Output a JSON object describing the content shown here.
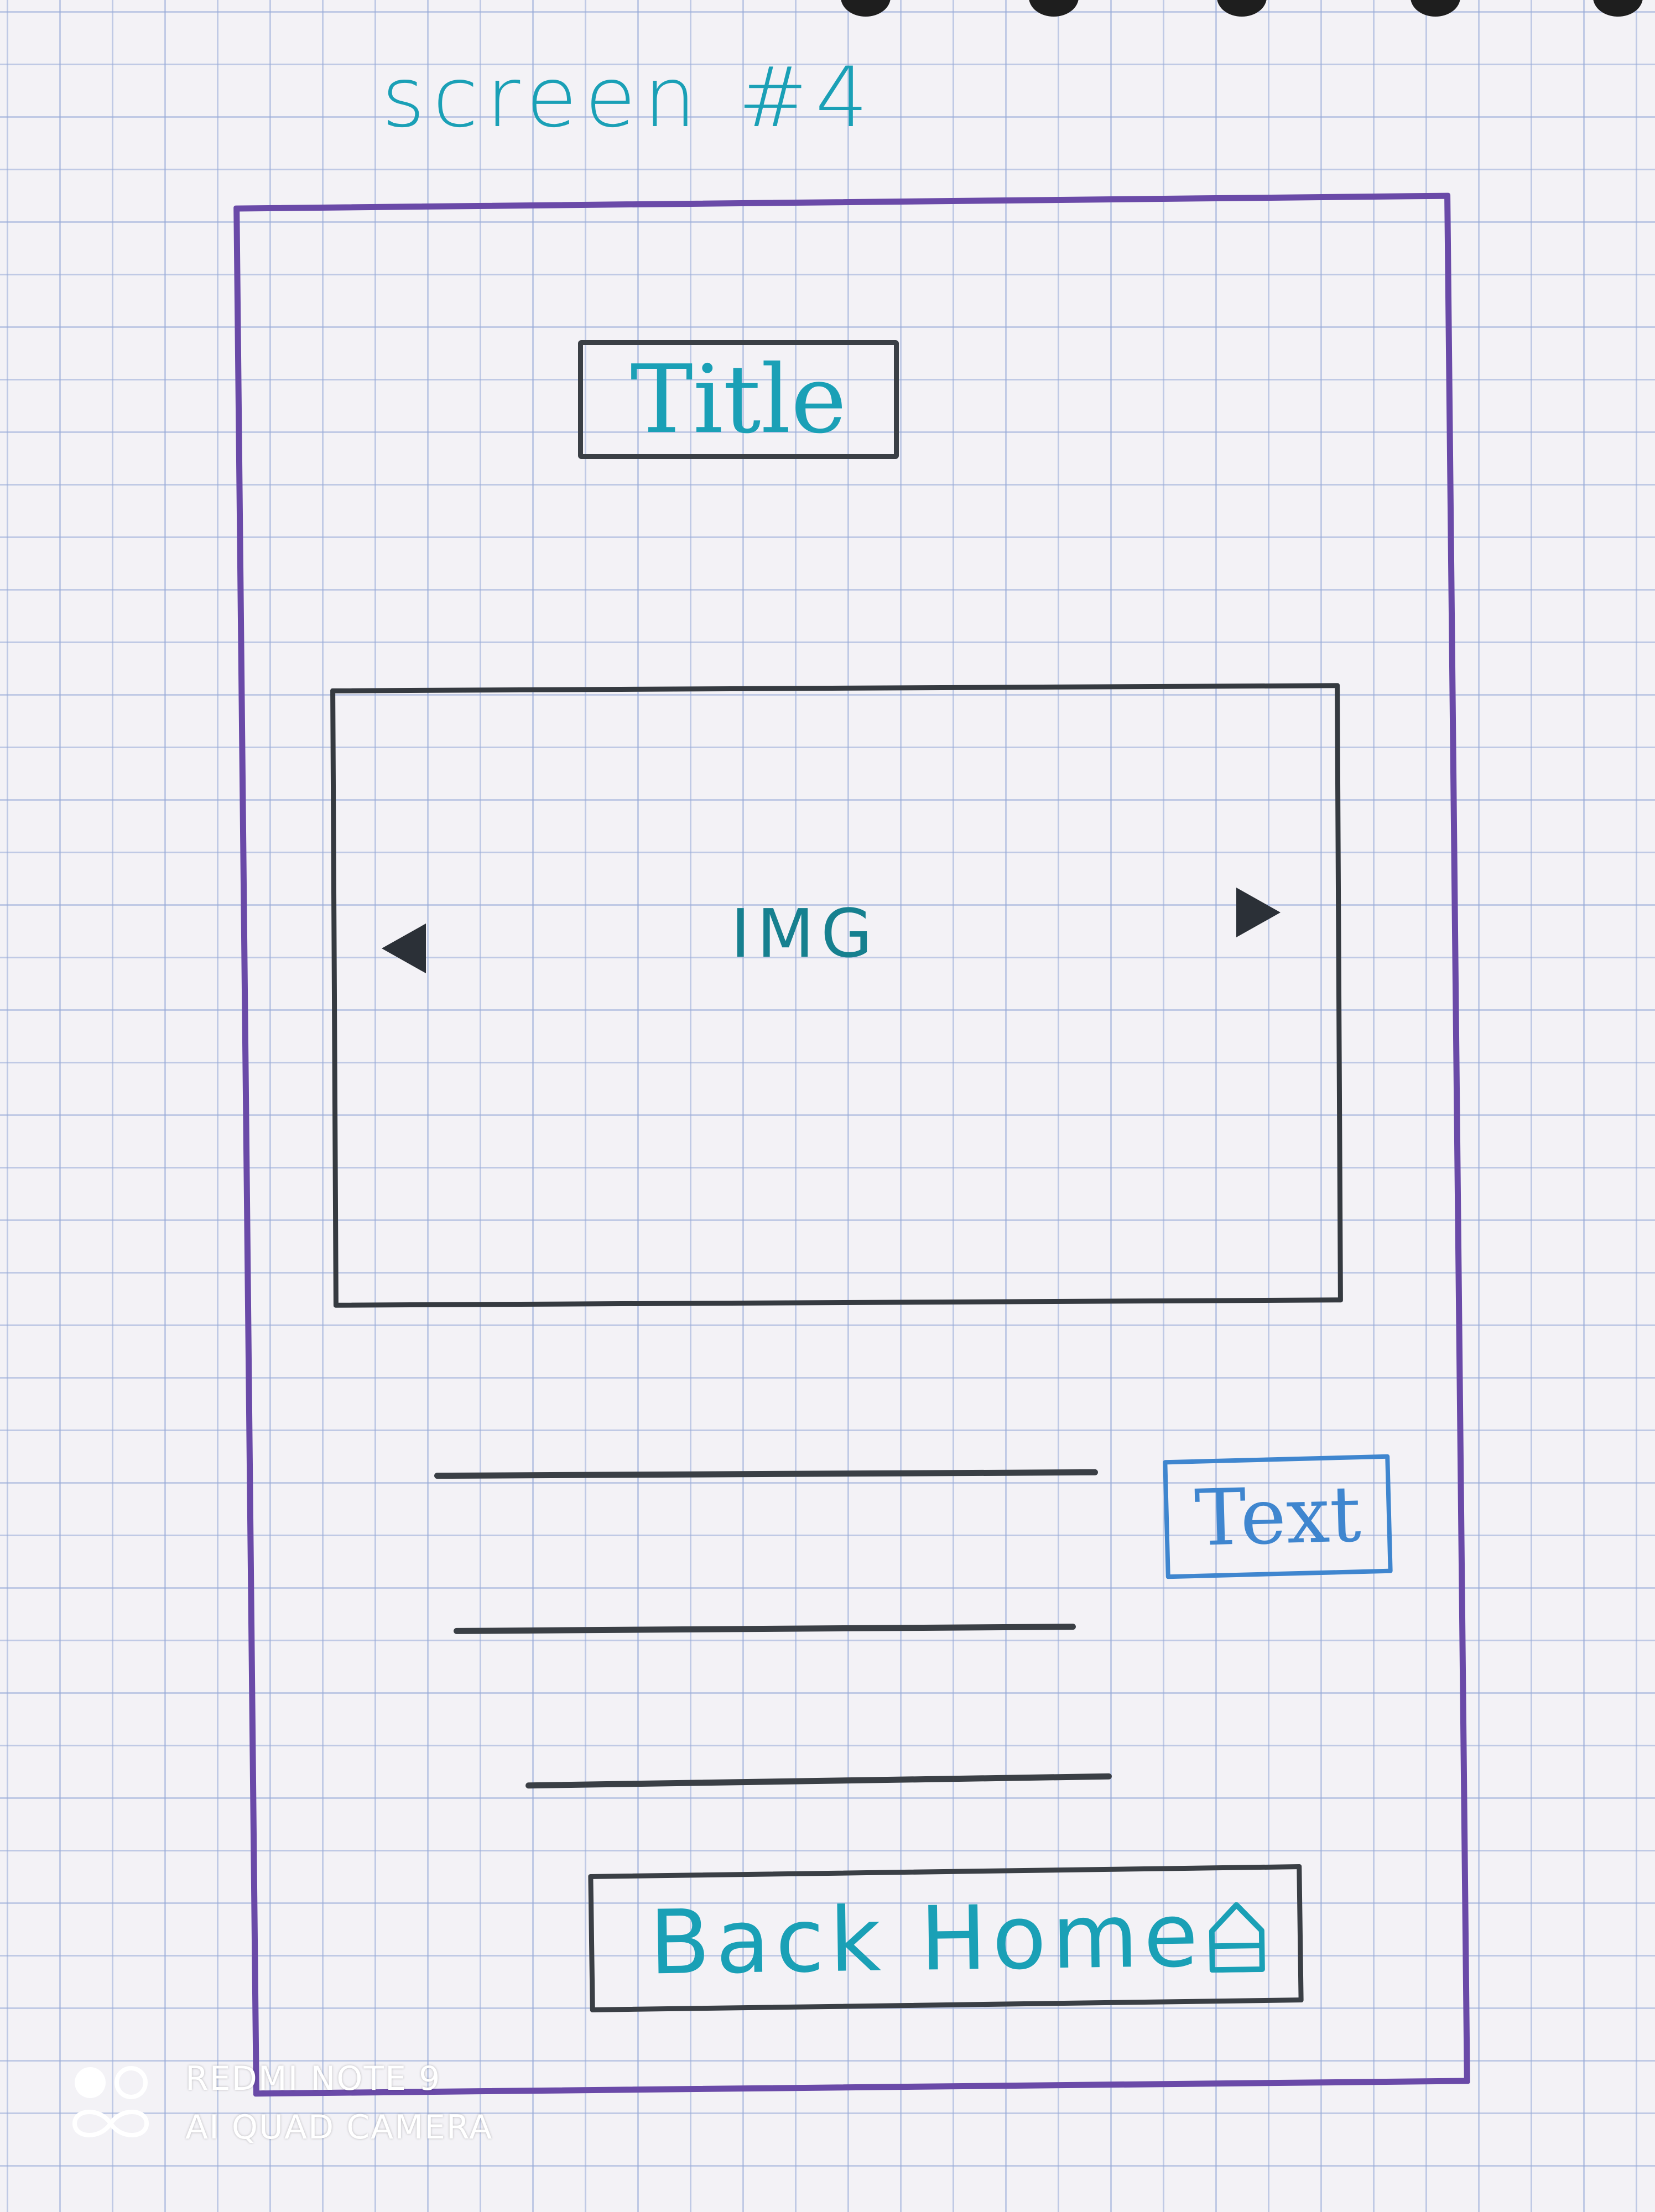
{
  "sketch": {
    "screen_label": "screen #4",
    "title_placeholder": "Title",
    "image_placeholder": "IMG",
    "text_placeholder": "Text",
    "back_home_label": "Back Home"
  },
  "watermark": {
    "line1": "REDMI NOTE 9",
    "line2": "AI QUAD CAMERA"
  },
  "icons": {
    "left_arrow": "triangle-left-icon",
    "right_arrow": "triangle-right-icon",
    "home": "home-icon",
    "camera_logo": "camera-lens-logo"
  },
  "colors": {
    "teal_ink": "#1aa0b6",
    "blue_ink": "#3f86cf",
    "frame_purple": "#6a4aa8",
    "dark_ink": "#2b3037",
    "paper": "#f3f2f6",
    "grid": "#96aad7"
  }
}
